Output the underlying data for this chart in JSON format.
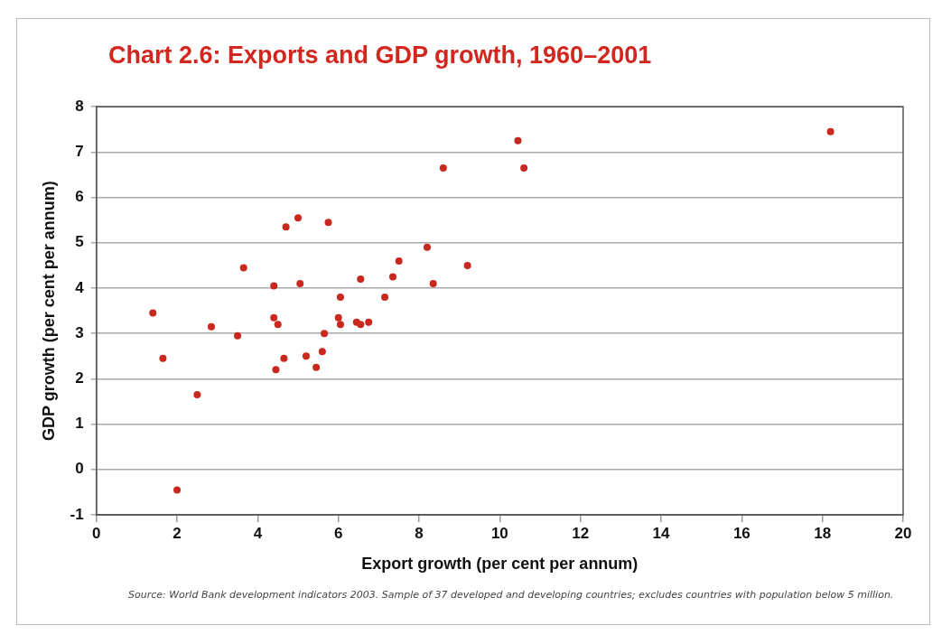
{
  "chart_data": {
    "type": "scatter",
    "title": "Chart 2.6: Exports and GDP growth, 1960–2001",
    "xlabel": "Export growth (per cent per annum)",
    "ylabel": "GDP growth (per cent per annum)",
    "annotations": [
      "Source: World Bank development indicators 2003. Sample of 37 developed and developing countries; excludes countries with population below 5 million."
    ],
    "x": [
      1.4,
      1.65,
      2.0,
      2.5,
      2.85,
      3.5,
      3.65,
      4.4,
      4.4,
      4.5,
      4.45,
      4.7,
      4.65,
      5.0,
      5.05,
      5.2,
      5.45,
      5.6,
      5.65,
      5.75,
      6.05,
      6.0,
      6.05,
      6.55,
      6.45,
      6.55,
      6.75,
      7.15,
      7.35,
      7.5,
      8.2,
      8.35,
      9.2,
      8.6,
      10.45,
      10.6,
      18.2
    ],
    "values": [
      3.45,
      2.45,
      -0.45,
      1.65,
      3.15,
      2.95,
      4.45,
      4.05,
      3.35,
      3.2,
      2.2,
      5.35,
      2.45,
      5.55,
      4.1,
      2.5,
      2.25,
      2.6,
      3.0,
      5.45,
      3.8,
      3.35,
      3.2,
      4.2,
      3.25,
      3.2,
      3.25,
      3.8,
      4.25,
      4.6,
      4.9,
      4.1,
      4.5,
      6.65,
      7.25,
      6.65,
      7.45
    ],
    "color": "#c8281e",
    "marker": "circle",
    "xlim": [
      0,
      20
    ],
    "xticks": [
      0,
      2,
      4,
      6,
      8,
      10,
      12,
      14,
      16,
      18,
      20
    ],
    "ylim": [
      -1,
      8
    ],
    "yticks": [
      -1,
      0,
      1,
      2,
      3,
      4,
      5,
      6,
      7,
      8
    ],
    "grid": "y",
    "legend": false
  }
}
